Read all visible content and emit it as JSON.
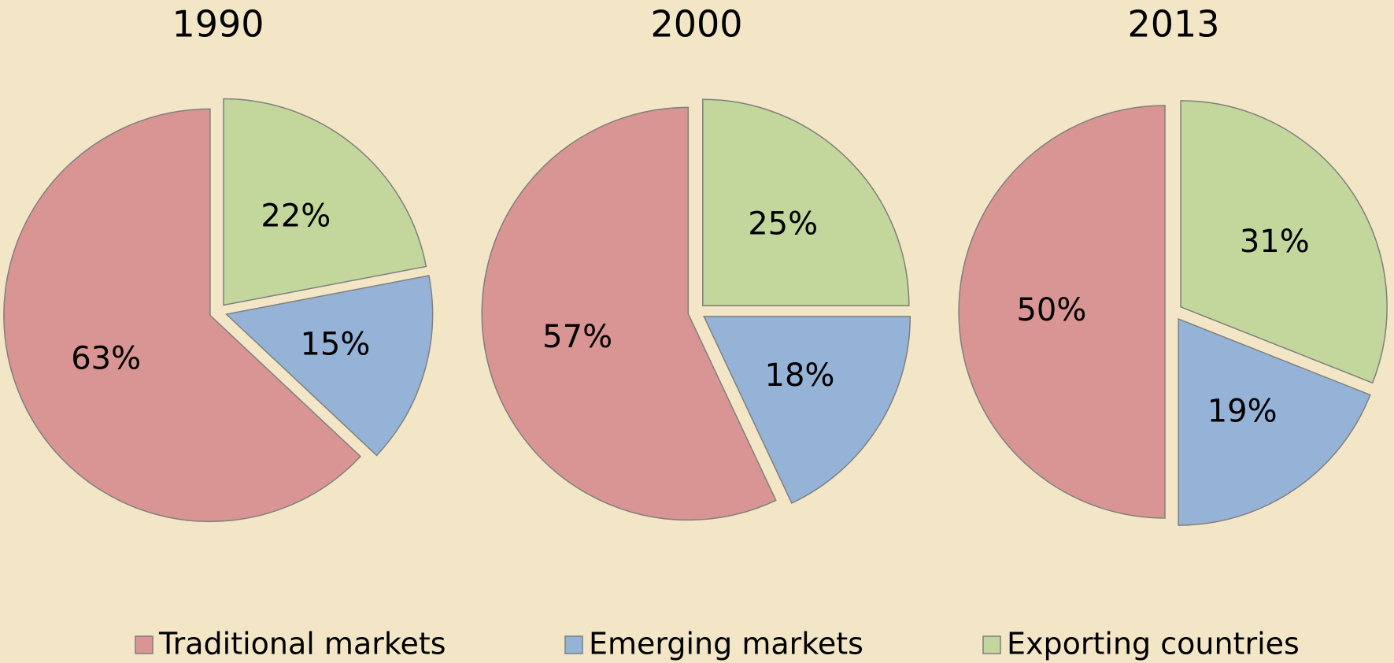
{
  "chart_data": [
    {
      "type": "pie",
      "title": "1990",
      "categories": [
        "Traditional markets",
        "Emerging markets",
        "Exporting countries"
      ],
      "values": [
        63,
        15,
        22
      ],
      "value_labels": [
        "63%",
        "15%",
        "22%"
      ],
      "colors": [
        "#d99594",
        "#95b3d7",
        "#c3d69b"
      ]
    },
    {
      "type": "pie",
      "title": "2000",
      "categories": [
        "Traditional markets",
        "Emerging markets",
        "Exporting countries"
      ],
      "values": [
        57,
        18,
        25
      ],
      "value_labels": [
        "57%",
        "18%",
        "25%"
      ],
      "colors": [
        "#d99594",
        "#95b3d7",
        "#c3d69b"
      ]
    },
    {
      "type": "pie",
      "title": "2013",
      "categories": [
        "Traditional markets",
        "Emerging markets",
        "Exporting countries"
      ],
      "values": [
        50,
        19,
        31
      ],
      "value_labels": [
        "50%",
        "19%",
        "31%"
      ],
      "colors": [
        "#d99594",
        "#95b3d7",
        "#c3d69b"
      ]
    }
  ]
}
